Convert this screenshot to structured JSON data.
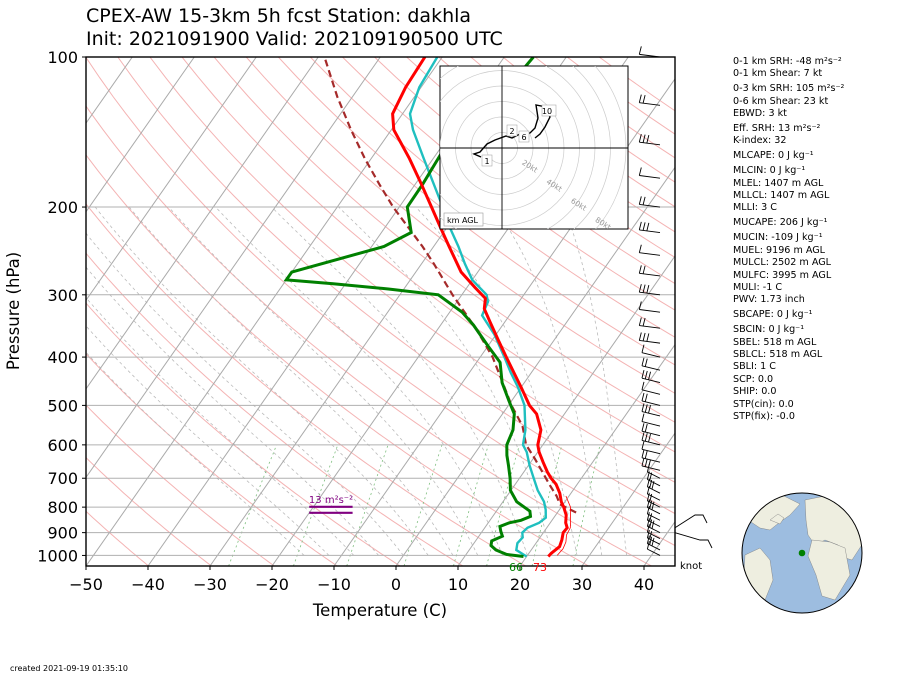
{
  "title": {
    "line1": "CPEX-AW 15-3km  5h fcst  Station: dakhla",
    "line2": "Init: 2021091900  Valid: 202109190500 UTC"
  },
  "created": "created 2021-09-19 01:35:10",
  "params": [
    {
      "text": "0-1 km SRH: -48 m²s⁻²",
      "gap": false
    },
    {
      "text": "0-1 km Shear: 7 kt",
      "gap": false
    },
    {
      "text": "0-3 km SRH: 105 m²s⁻²",
      "gap": true
    },
    {
      "text": "0-6 km Shear: 23 kt",
      "gap": false
    },
    {
      "text": "EBWD: 3 kt",
      "gap": false
    },
    {
      "text": "Eff. SRH: 13 m²s⁻²",
      "gap": true
    },
    {
      "text": "K-index: 32",
      "gap": false
    },
    {
      "text": "MLCAPE: 0 J kg⁻¹",
      "gap": true
    },
    {
      "text": "MLCIN: 0 J kg⁻¹",
      "gap": true
    },
    {
      "text": "MLEL: 1407 m AGL",
      "gap": false
    },
    {
      "text": "MLLCL: 1407 m AGL",
      "gap": false
    },
    {
      "text": "MLLI: 3 C",
      "gap": false
    },
    {
      "text": "MUCAPE: 206 J kg⁻¹",
      "gap": true
    },
    {
      "text": "MUCIN: -109 J kg⁻¹",
      "gap": true
    },
    {
      "text": "MUEL: 9196 m AGL",
      "gap": false
    },
    {
      "text": "MULCL: 2502 m AGL",
      "gap": false
    },
    {
      "text": "MULFC: 3995 m AGL",
      "gap": false
    },
    {
      "text": "MULI: -1 C",
      "gap": false
    },
    {
      "text": "PWV: 1.73 inch",
      "gap": false
    },
    {
      "text": "SBCAPE: 0 J kg⁻¹",
      "gap": true
    },
    {
      "text": "SBCIN: 0 J kg⁻¹",
      "gap": true
    },
    {
      "text": "SBEL: 518 m AGL",
      "gap": false
    },
    {
      "text": "SBLCL: 518 m AGL",
      "gap": false
    },
    {
      "text": "SBLI: 1 C",
      "gap": false
    },
    {
      "text": "SCP: 0.0",
      "gap": false
    },
    {
      "text": "SHIP: 0.0",
      "gap": false
    },
    {
      "text": "STP(cin): 0.0",
      "gap": false
    },
    {
      "text": "STP(fix): -0.0",
      "gap": false
    }
  ],
  "chart_data": [
    {
      "type": "line",
      "subtype": "skew-t log-p",
      "xlabel": "Temperature (C)",
      "ylabel": "Pressure (hPa)",
      "xlim": [
        -50,
        45
      ],
      "ylim": [
        1050,
        100
      ],
      "y_scale": "log",
      "xticks": [
        -50,
        -40,
        -30,
        -20,
        -10,
        0,
        10,
        20,
        30,
        40
      ],
      "yticks": [
        100,
        200,
        300,
        400,
        500,
        600,
        700,
        800,
        900,
        1000
      ],
      "grid": true,
      "colors": {
        "temperature": "#ff0000",
        "dewpoint": "#008000",
        "virtual": "#1fbfbf",
        "parcel": "#a52a2a",
        "srh": "#800080"
      },
      "series": [
        {
          "role": "temperature",
          "points": [
            [
              1005,
              23.5
            ],
            [
              990,
              23.6
            ],
            [
              960,
              24.2
            ],
            [
              930,
              23.8
            ],
            [
              900,
              23.2
            ],
            [
              880,
              23.3
            ],
            [
              860,
              22.5
            ],
            [
              830,
              21.7
            ],
            [
              800,
              20.4
            ],
            [
              780,
              19.4
            ],
            [
              750,
              18.2
            ],
            [
              720,
              16.6
            ],
            [
              700,
              15.1
            ],
            [
              680,
              13.8
            ],
            [
              650,
              12.0
            ],
            [
              620,
              10.2
            ],
            [
              600,
              9.2
            ],
            [
              560,
              8.0
            ],
            [
              520,
              5.5
            ],
            [
              500,
              3.4
            ],
            [
              460,
              0.0
            ],
            [
              430,
              -2.8
            ],
            [
              400,
              -5.8
            ],
            [
              370,
              -9.0
            ],
            [
              340,
              -12.4
            ],
            [
              320,
              -14.8
            ],
            [
              305,
              -15.8
            ],
            [
              290,
              -18.7
            ],
            [
              270,
              -22.7
            ],
            [
              240,
              -27.5
            ],
            [
              220,
              -31.0
            ],
            [
              200,
              -34.8
            ],
            [
              180,
              -39.0
            ],
            [
              160,
              -43.8
            ],
            [
              140,
              -49.6
            ],
            [
              130,
              -51.6
            ],
            [
              115,
              -52.5
            ],
            [
              100,
              -52.8
            ]
          ]
        },
        {
          "role": "dewpoint",
          "points": [
            [
              1005,
              19.5
            ],
            [
              995,
              16.5
            ],
            [
              975,
              14.3
            ],
            [
              955,
              13.0
            ],
            [
              935,
              12.6
            ],
            [
              915,
              13.8
            ],
            [
              895,
              13.0
            ],
            [
              875,
              12.3
            ],
            [
              860,
              13.4
            ],
            [
              850,
              15.0
            ],
            [
              835,
              16.1
            ],
            [
              815,
              15.4
            ],
            [
              780,
              12.2
            ],
            [
              740,
              9.9
            ],
            [
              700,
              8.5
            ],
            [
              660,
              6.8
            ],
            [
              630,
              5.4
            ],
            [
              600,
              4.2
            ],
            [
              560,
              3.5
            ],
            [
              520,
              1.9
            ],
            [
              490,
              -0.4
            ],
            [
              450,
              -3.6
            ],
            [
              410,
              -6.2
            ],
            [
              380,
              -10.0
            ],
            [
              345,
              -14.7
            ],
            [
              325,
              -18.0
            ],
            [
              300,
              -23.8
            ],
            [
              292,
              -32.5
            ],
            [
              285,
              -42.0
            ],
            [
              280,
              -50.0
            ],
            [
              270,
              -50.0
            ],
            [
              240,
              -38.0
            ],
            [
              225,
              -35.2
            ],
            [
              200,
              -38.7
            ],
            [
              180,
              -38.8
            ],
            [
              155,
              -39.3
            ],
            [
              135,
              -38.2
            ],
            [
              120,
              -36.2
            ],
            [
              100,
              -35.3
            ]
          ]
        },
        {
          "role": "virtual",
          "points": [
            [
              1005,
              20.0
            ],
            [
              975,
              17.6
            ],
            [
              945,
              17.0
            ],
            [
              920,
              17.2
            ],
            [
              900,
              16.6
            ],
            [
              880,
              16.9
            ],
            [
              860,
              18.2
            ],
            [
              840,
              18.7
            ],
            [
              810,
              17.8
            ],
            [
              780,
              16.6
            ],
            [
              740,
              14.3
            ],
            [
              700,
              12.3
            ],
            [
              660,
              10.2
            ],
            [
              620,
              8.2
            ],
            [
              600,
              6.8
            ],
            [
              560,
              5.5
            ],
            [
              520,
              3.6
            ],
            [
              500,
              2.6
            ],
            [
              460,
              -0.5
            ],
            [
              430,
              -3.3
            ],
            [
              400,
              -6.1
            ],
            [
              360,
              -10.3
            ],
            [
              330,
              -14.4
            ],
            [
              310,
              -15.0
            ],
            [
              300,
              -16.0
            ],
            [
              280,
              -20.0
            ],
            [
              260,
              -23.0
            ],
            [
              240,
              -26.0
            ],
            [
              220,
              -29.5
            ],
            [
              200,
              -33.0
            ],
            [
              180,
              -37.0
            ],
            [
              160,
              -41.5
            ],
            [
              140,
              -46.5
            ],
            [
              130,
              -48.8
            ],
            [
              115,
              -50.3
            ],
            [
              100,
              -50.8
            ]
          ]
        },
        {
          "role": "parcel",
          "points": [
            [
              820,
              23.0
            ],
            [
              790,
              19.5
            ],
            [
              760,
              18.0
            ],
            [
              720,
              15.5
            ],
            [
              680,
              13.0
            ],
            [
              640,
              10.3
            ],
            [
              600,
              7.3
            ],
            [
              550,
              4.6
            ],
            [
              500,
              0.5
            ],
            [
              450,
              -3.5
            ],
            [
              400,
              -8.0
            ],
            [
              350,
              -14.0
            ],
            [
              300,
              -21.5
            ],
            [
              260,
              -28.0
            ],
            [
              240,
              -31.8
            ],
            [
              200,
              -41.0
            ],
            [
              180,
              -45.8
            ],
            [
              160,
              -51.0
            ],
            [
              140,
              -56.5
            ],
            [
              120,
              -62.5
            ],
            [
              100,
              -69.0
            ]
          ]
        }
      ],
      "surface_labels": {
        "dewpoint": "66",
        "temperature": "73"
      },
      "srh_marker": {
        "label": "13 m²s⁻²",
        "pressure": 810,
        "x_range": [
          -14,
          -7
        ]
      },
      "wind_units": "knot"
    },
    {
      "type": "line",
      "subtype": "hodograph",
      "units_label": "km AGL",
      "ring_labels": [
        "20kt",
        "40kt",
        "60kt",
        "80kt"
      ],
      "height_labels": [
        "1",
        "2",
        "6",
        "10"
      ]
    }
  ]
}
